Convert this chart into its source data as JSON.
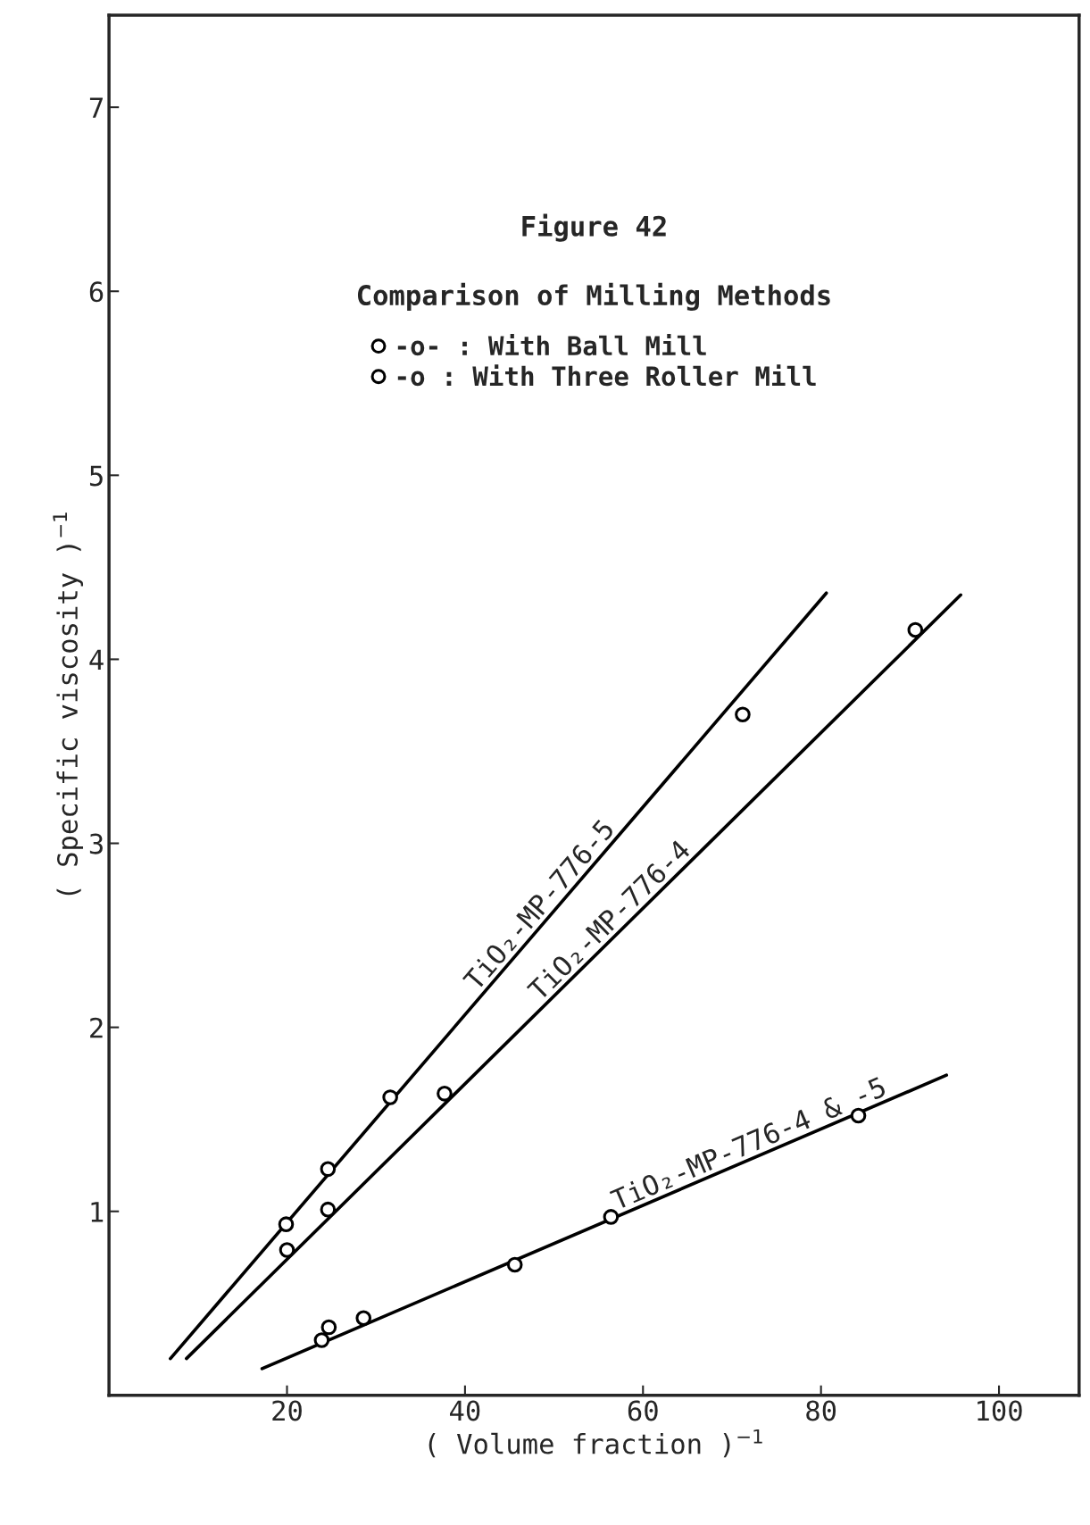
{
  "chart_data": {
    "type": "scatter",
    "title": "Figure 42",
    "subtitle": "Comparison of Milling Methods",
    "xlabel": "( Volume fraction )$^{−1}$",
    "ylabel": "( Specific viscosity )$^{−1}$",
    "xlim": [
      0,
      109
    ],
    "ylim": [
      0,
      7.5
    ],
    "xticks": [
      20,
      40,
      60,
      80,
      100
    ],
    "yticks": [
      1,
      2,
      3,
      4,
      5,
      6,
      7
    ],
    "grid": false,
    "legend": "top",
    "marker": "circle",
    "series": [
      {
        "name": "-o- : With Ball Mill",
        "color": "#000000",
        "x": [
          23.9,
          24.7,
          28.6,
          45.6,
          56.4,
          84.2
        ],
        "values": [
          0.3,
          0.37,
          0.42,
          0.71,
          0.97,
          1.52
        ]
      },
      {
        "name": "-o : With Three Roller Mill",
        "color": "#000000",
        "x": [
          19.9,
          24.6,
          31.6,
          20.0,
          24.6,
          37.7,
          71.2,
          90.6
        ],
        "values": [
          0.93,
          1.23,
          1.62,
          0.79,
          1.01,
          1.64,
          3.7,
          4.16
        ]
      },
      {
        "type": "line",
        "color": "#000000",
        "marker": "none",
        "x": [
          6.9,
          80.6
        ],
        "values": [
          0.2,
          4.36
        ]
      },
      {
        "type": "line",
        "color": "#000000",
        "marker": "none",
        "x": [
          8.7,
          95.7
        ],
        "values": [
          0.2,
          4.35
        ]
      },
      {
        "type": "line",
        "color": "#000000",
        "marker": "none",
        "x": [
          17.2,
          94.1
        ],
        "values": [
          0.145,
          1.74
        ]
      }
    ],
    "annotations": [
      "TiO₂-MP-776-5",
      "TiO₂-MP-776-4",
      "TiO₂-MP-776-4 & -5"
    ]
  }
}
